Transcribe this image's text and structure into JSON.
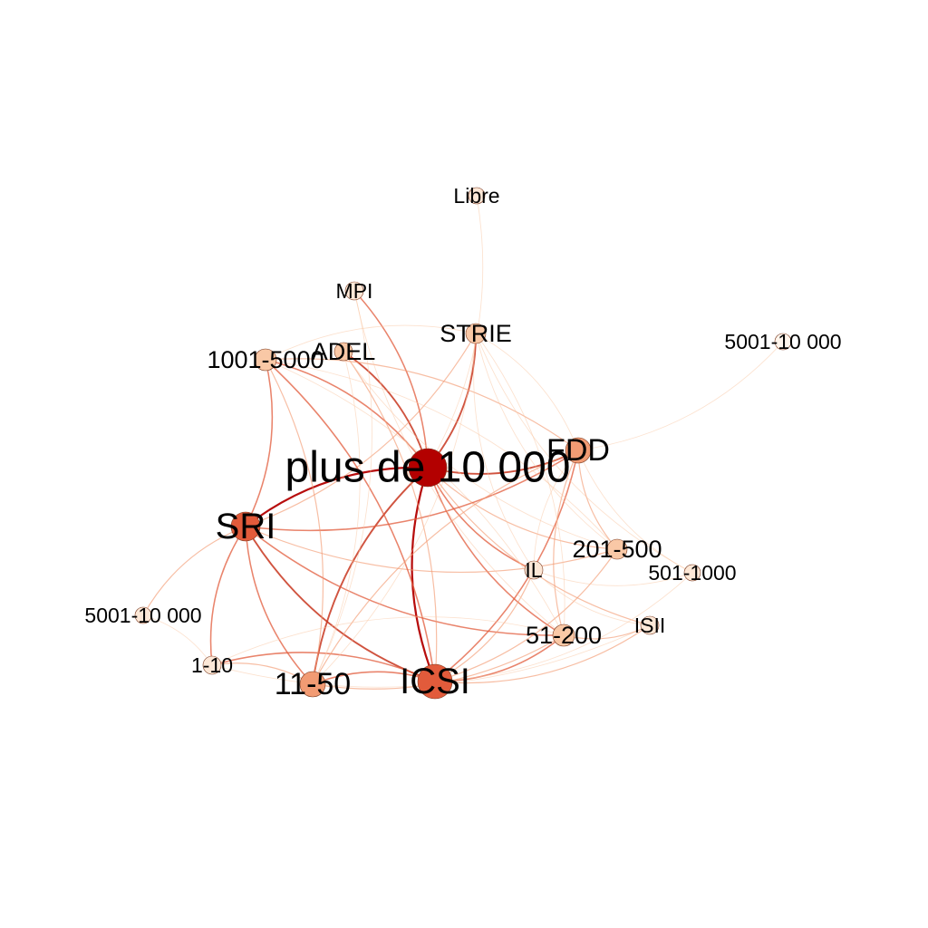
{
  "graph": {
    "nodes": [
      {
        "id": "plus10000",
        "label": "plus de 10 000",
        "tier": 5
      },
      {
        "id": "sri",
        "label": "SRI",
        "tier": 4
      },
      {
        "id": "icsi",
        "label": "ICSI",
        "tier": 4
      },
      {
        "id": "fdd",
        "label": "FDD",
        "tier": 3
      },
      {
        "id": "s11_50",
        "label": "11-50",
        "tier": 3
      },
      {
        "id": "s51_200",
        "label": "51-200",
        "tier": 2
      },
      {
        "id": "s1001_5000",
        "label": "1001-5000",
        "tier": 2
      },
      {
        "id": "s201_500",
        "label": "201-500",
        "tier": 2
      },
      {
        "id": "strie",
        "label": "STRIE",
        "tier": 2
      },
      {
        "id": "adel",
        "label": "ADEL",
        "tier": 2
      },
      {
        "id": "mpi",
        "label": "MPI",
        "tier": 1
      },
      {
        "id": "libre",
        "label": "Libre",
        "tier": 1
      },
      {
        "id": "s5001_right",
        "label": "5001-10 000",
        "tier": 0
      },
      {
        "id": "s5001_left",
        "label": "5001-10 000",
        "tier": 1
      },
      {
        "id": "il",
        "label": "IL",
        "tier": 1
      },
      {
        "id": "s501_1000",
        "label": "501-1000",
        "tier": 1
      },
      {
        "id": "isii",
        "label": "ISII",
        "tier": 1
      },
      {
        "id": "s1_10",
        "label": "1-10",
        "tier": 1
      }
    ],
    "edges": [
      {
        "source": "plus10000",
        "target": "sri",
        "weight": 5
      },
      {
        "source": "plus10000",
        "target": "icsi",
        "weight": 5
      },
      {
        "source": "plus10000",
        "target": "fdd",
        "weight": 4
      },
      {
        "source": "plus10000",
        "target": "strie",
        "weight": 4
      },
      {
        "source": "plus10000",
        "target": "adel",
        "weight": 4
      },
      {
        "source": "plus10000",
        "target": "mpi",
        "weight": 3
      },
      {
        "source": "plus10000",
        "target": "s11_50",
        "weight": 4
      },
      {
        "source": "plus10000",
        "target": "s51_200",
        "weight": 3
      },
      {
        "source": "plus10000",
        "target": "il",
        "weight": 3
      },
      {
        "source": "plus10000",
        "target": "s1001_5000",
        "weight": 3
      },
      {
        "source": "plus10000",
        "target": "libre",
        "weight": 1
      },
      {
        "source": "plus10000",
        "target": "s201_500",
        "weight": 2
      },
      {
        "source": "plus10000",
        "target": "isii",
        "weight": 2
      },
      {
        "source": "sri",
        "target": "icsi",
        "weight": 4
      },
      {
        "source": "sri",
        "target": "s11_50",
        "weight": 3
      },
      {
        "source": "sri",
        "target": "s1_10",
        "weight": 3
      },
      {
        "source": "sri",
        "target": "s5001_left",
        "weight": 2
      },
      {
        "source": "sri",
        "target": "s1001_5000",
        "weight": 3
      },
      {
        "source": "sri",
        "target": "s51_200",
        "weight": 3
      },
      {
        "source": "sri",
        "target": "fdd",
        "weight": 3
      },
      {
        "source": "sri",
        "target": "s201_500",
        "weight": 2
      },
      {
        "source": "sri",
        "target": "strie",
        "weight": 2
      },
      {
        "source": "icsi",
        "target": "s11_50",
        "weight": 3
      },
      {
        "source": "icsi",
        "target": "s51_200",
        "weight": 3
      },
      {
        "source": "icsi",
        "target": "fdd",
        "weight": 3
      },
      {
        "source": "icsi",
        "target": "s201_500",
        "weight": 2
      },
      {
        "source": "icsi",
        "target": "il",
        "weight": 2
      },
      {
        "source": "icsi",
        "target": "s1_10",
        "weight": 3
      },
      {
        "source": "icsi",
        "target": "s1001_5000",
        "weight": 3
      },
      {
        "source": "icsi",
        "target": "isii",
        "weight": 2
      },
      {
        "source": "icsi",
        "target": "adel",
        "weight": 2
      },
      {
        "source": "icsi",
        "target": "s501_1000",
        "weight": 1
      },
      {
        "source": "fdd",
        "target": "s11_50",
        "weight": 2
      },
      {
        "source": "fdd",
        "target": "s51_200",
        "weight": 2
      },
      {
        "source": "fdd",
        "target": "s201_500",
        "weight": 2
      },
      {
        "source": "fdd",
        "target": "s1001_5000",
        "weight": 2
      },
      {
        "source": "fdd",
        "target": "s5001_right",
        "weight": 1
      },
      {
        "source": "fdd",
        "target": "s501_1000",
        "weight": 1
      },
      {
        "source": "fdd",
        "target": "strie",
        "weight": 1
      },
      {
        "source": "fdd",
        "target": "il",
        "weight": 1
      },
      {
        "source": "s11_50",
        "target": "s1_10",
        "weight": 2
      },
      {
        "source": "s11_50",
        "target": "s1001_5000",
        "weight": 2
      },
      {
        "source": "s11_50",
        "target": "strie",
        "weight": 1
      },
      {
        "source": "s11_50",
        "target": "s51_200",
        "weight": 2
      },
      {
        "source": "s11_50",
        "target": "adel",
        "weight": 1
      },
      {
        "source": "s11_50",
        "target": "mpi",
        "weight": 1
      },
      {
        "source": "s51_200",
        "target": "strie",
        "weight": 1
      },
      {
        "source": "s51_200",
        "target": "isii",
        "weight": 2
      },
      {
        "source": "s51_200",
        "target": "s1_10",
        "weight": 1
      },
      {
        "source": "s51_200",
        "target": "s1001_5000",
        "weight": 1
      },
      {
        "source": "strie",
        "target": "s201_500",
        "weight": 1
      },
      {
        "source": "strie",
        "target": "s501_1000",
        "weight": 1
      },
      {
        "source": "strie",
        "target": "s1001_5000",
        "weight": 1
      },
      {
        "source": "strie",
        "target": "il",
        "weight": 1
      },
      {
        "source": "adel",
        "target": "s201_500",
        "weight": 1
      },
      {
        "source": "mpi",
        "target": "s51_200",
        "weight": 1
      },
      {
        "source": "s1_10",
        "target": "isii",
        "weight": 1
      },
      {
        "source": "s1_10",
        "target": "s5001_left",
        "weight": 1
      },
      {
        "source": "s201_500",
        "target": "s1001_5000",
        "weight": 1
      },
      {
        "source": "il",
        "target": "isii",
        "weight": 1
      },
      {
        "source": "il",
        "target": "s501_1000",
        "weight": 1
      }
    ]
  },
  "colors": {
    "tier0": "#fff5ec",
    "tier1": "#fde8d7",
    "tier2": "#f9c8a6",
    "tier3": "#f29b73",
    "tier4": "#e25b3b",
    "tier5": "#b30000"
  }
}
